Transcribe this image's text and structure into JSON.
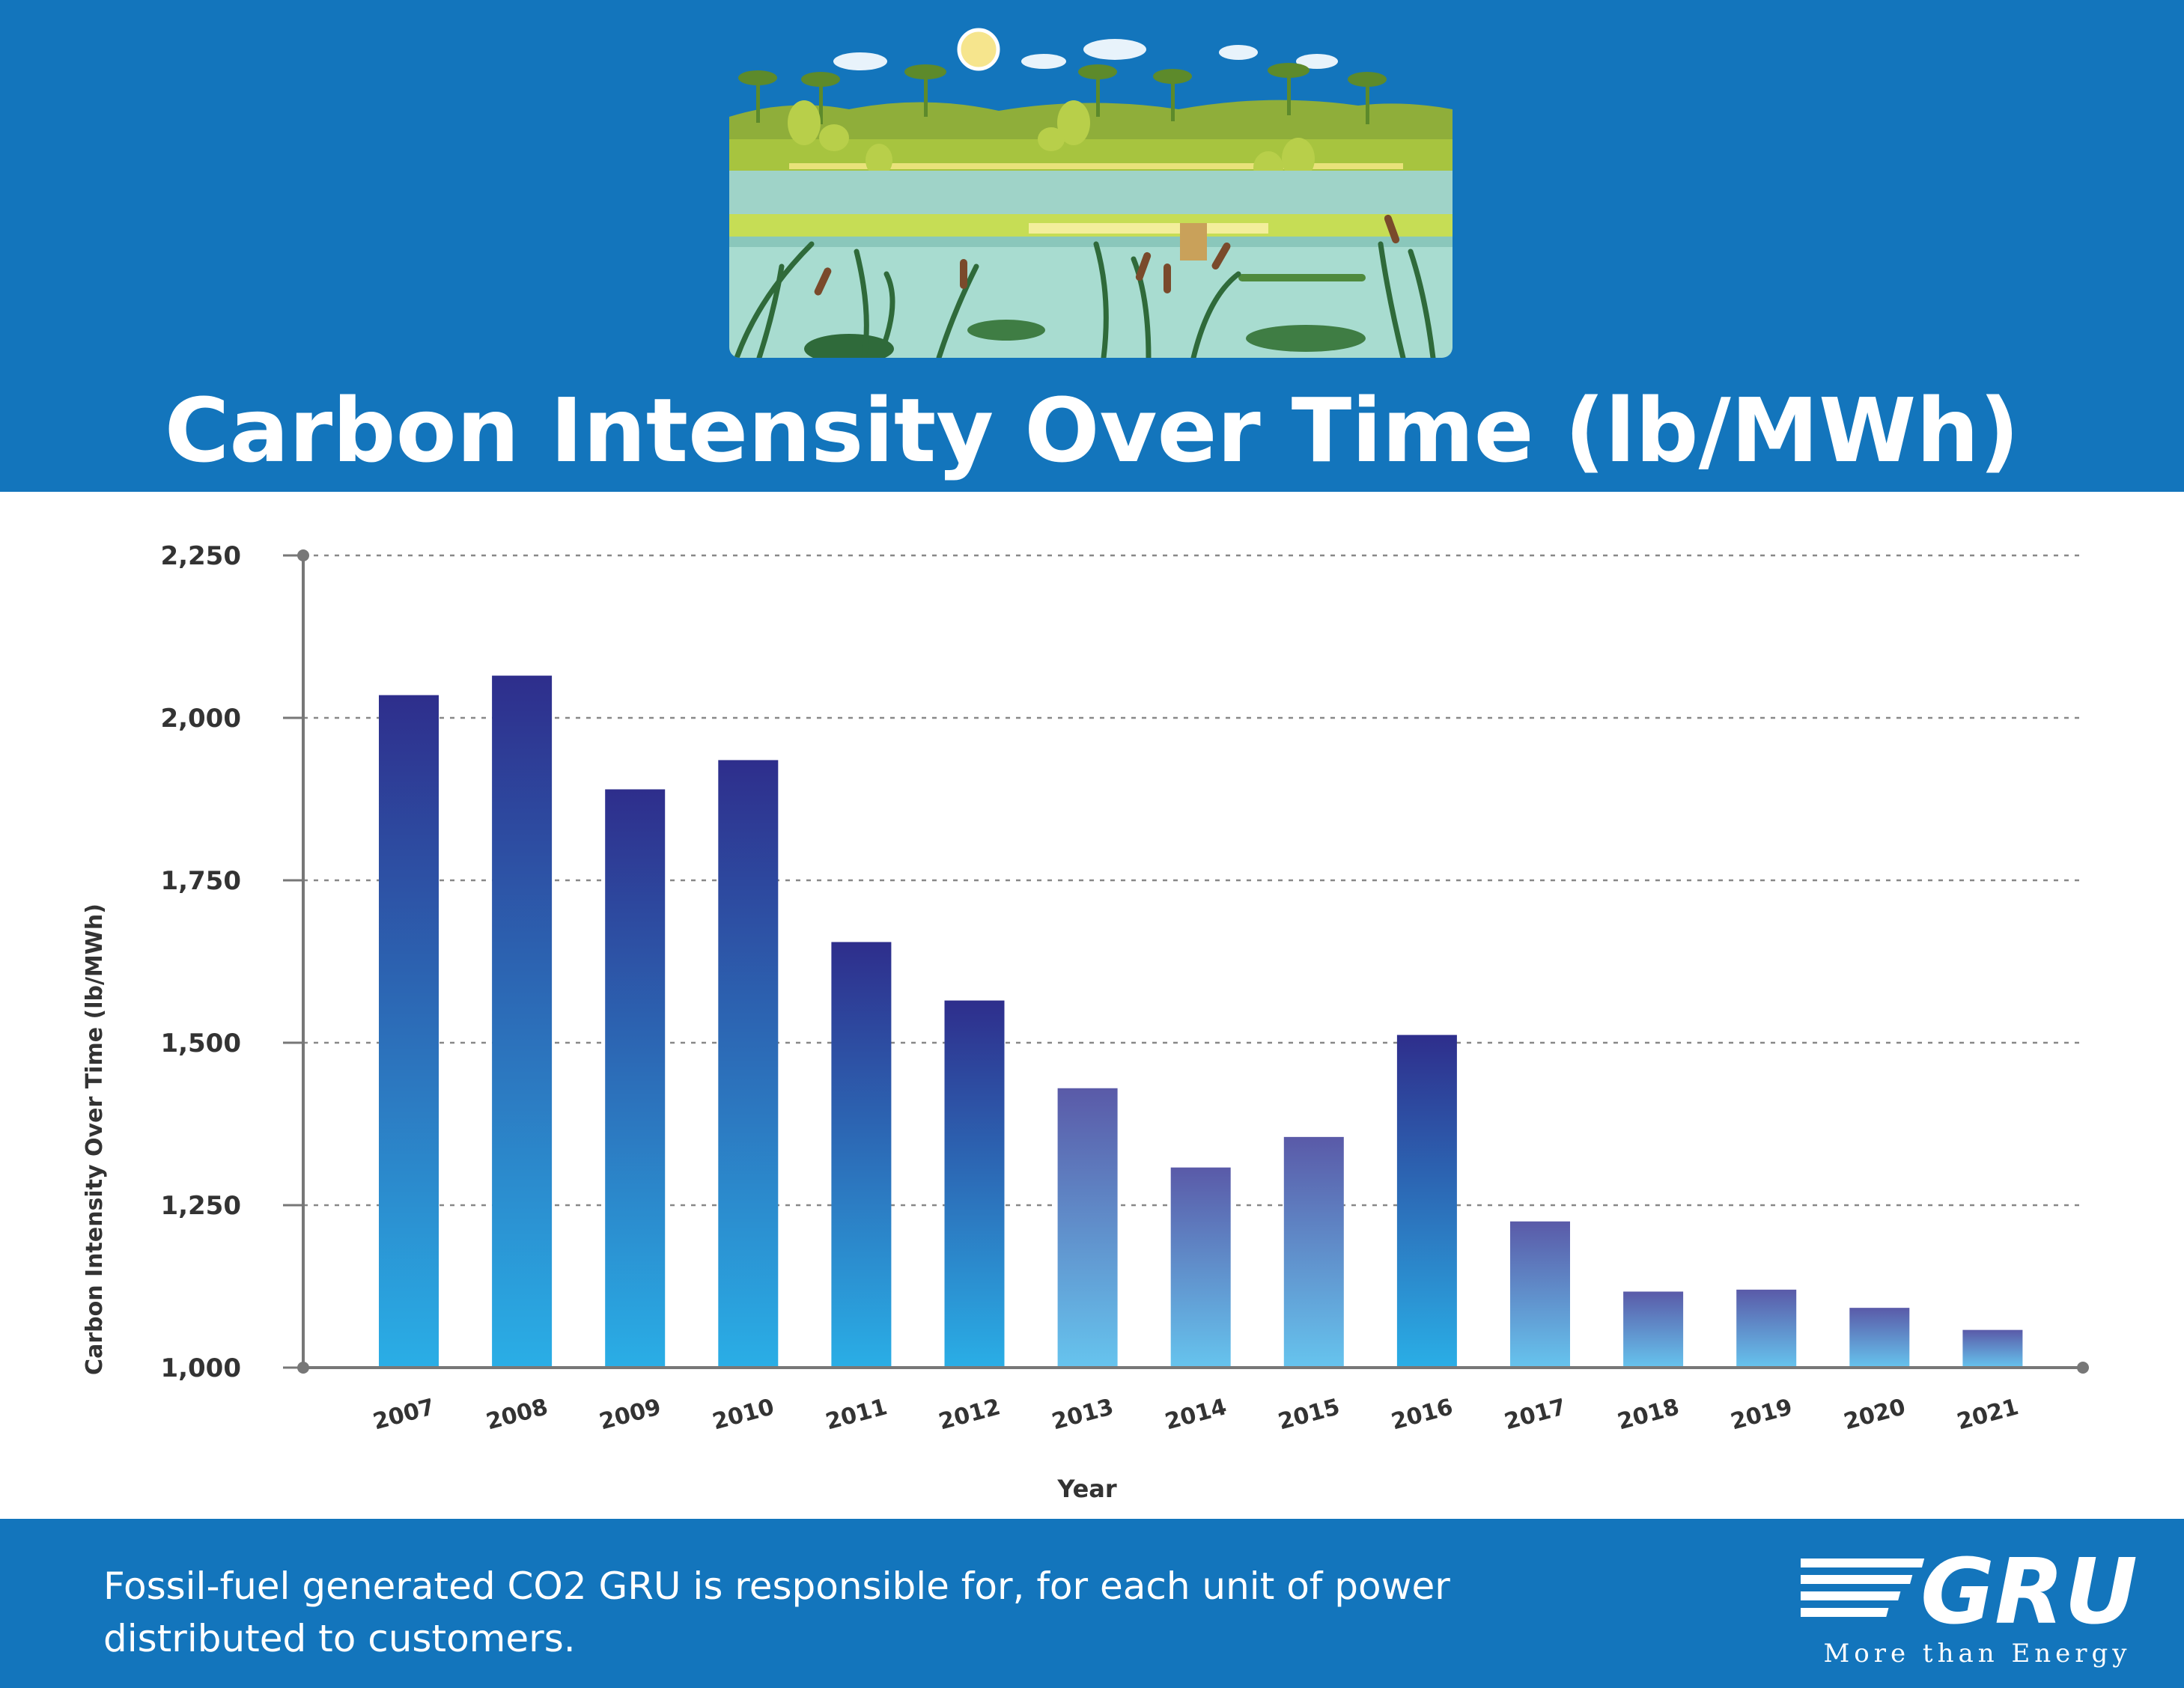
{
  "header": {
    "title": "Carbon Intensity Over Time (lb/MWh)"
  },
  "footer": {
    "caption": "Fossil-fuel generated CO2 GRU is responsible for, for each unit of power distributed to customers.",
    "logo_text": "GRU",
    "logo_tagline": "More than Energy"
  },
  "colors": {
    "brand_blue": "#1375bc",
    "bar_top_dark": "#2e2e8c",
    "bar_bottom_light": "#2aaee6"
  },
  "chart_data": {
    "type": "bar",
    "title": "Carbon Intensity Over Time (lb/MWh)",
    "xlabel": "Year",
    "ylabel": "Carbon Intensity Over Time (lb/MWh)",
    "ylim": [
      1000,
      2250
    ],
    "yticks": [
      1000,
      1250,
      1500,
      1750,
      2000,
      2250
    ],
    "ytick_labels": [
      "1,000",
      "1,250",
      "1,500",
      "1,750",
      "2,000",
      "2,250"
    ],
    "grid": "horizontal dashed",
    "categories": [
      "2007",
      "2008",
      "2009",
      "2010",
      "2011",
      "2012",
      "2013",
      "2014",
      "2015",
      "2016",
      "2017",
      "2018",
      "2019",
      "2020",
      "2021"
    ],
    "values": [
      2035,
      2065,
      1890,
      1935,
      1655,
      1565,
      1430,
      1308,
      1355,
      1512,
      1225,
      1117,
      1120,
      1092,
      1058
    ]
  }
}
